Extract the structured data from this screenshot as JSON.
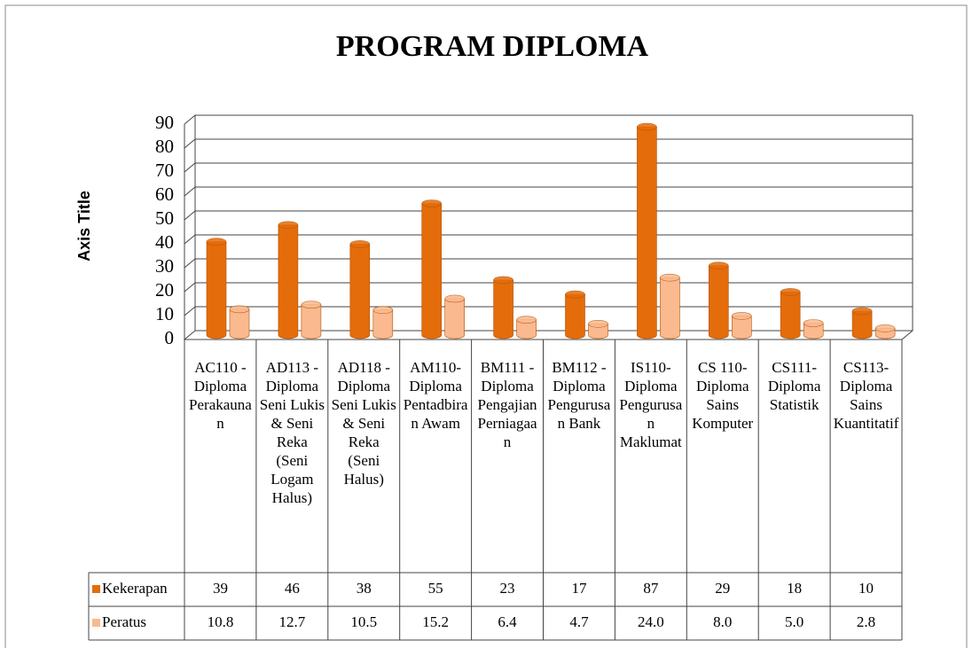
{
  "chart_data": {
    "type": "bar3d",
    "title": "PROGRAM DIPLOMA",
    "y_axis_label": "Axis Title",
    "categories": [
      "AC110 - Diploma Perakaunan",
      "AD113 - Diploma Seni Lukis & Seni Reka (Seni Logam Halus)",
      "AD118 - Diploma Seni Lukis & Seni Reka (Seni Halus)",
      "AM110- Diploma Pentadbiran Awam",
      "BM111 - Diploma Pengajian Perniagaan",
      "BM112 - Diploma Pengurusan Bank",
      "IS110-Diploma Pengurusan Maklumat",
      "CS 110-Diploma Sains Komputer",
      "CS111-Diploma Statistik",
      "CS113-Diploma Sains Kuantitatif"
    ],
    "series": [
      {
        "name": "Kekerapan",
        "color": "#e46c0a",
        "values": [
          39,
          46,
          38,
          55,
          23,
          17,
          87,
          29,
          18,
          10
        ]
      },
      {
        "name": "Peratus",
        "color": "#fab98f",
        "values": [
          10.8,
          12.7,
          10.5,
          15.2,
          6.4,
          4.7,
          24.0,
          8.0,
          5.0,
          2.8
        ],
        "value_labels": [
          "10.8",
          "12.7",
          "10.5",
          "15.2",
          "6.4",
          "4.7",
          "24.0",
          "8.0",
          "5.0",
          "2.8"
        ]
      }
    ],
    "ylim": [
      0,
      90
    ],
    "yticks": [
      0,
      10,
      20,
      30,
      40,
      50,
      60,
      70,
      80,
      90
    ],
    "grid": true,
    "data_table": true
  }
}
